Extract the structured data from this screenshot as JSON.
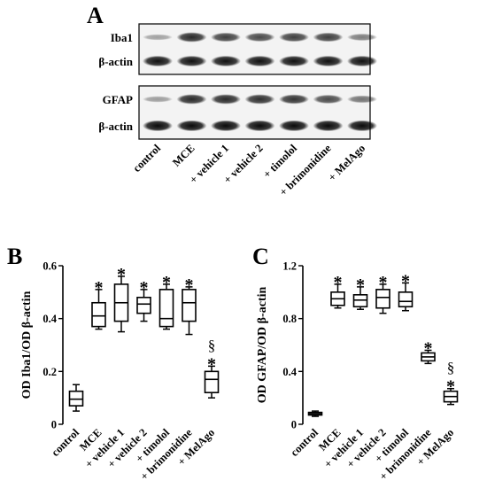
{
  "panels": {
    "a": "A",
    "b": "B",
    "c": "C"
  },
  "categories": [
    "control",
    "MCE",
    "+ vehicle 1",
    "+ vehicle 2",
    "+ timolol",
    "+ brimonidine",
    "+ MelAgo"
  ],
  "blot": {
    "groups": [
      {
        "rows": [
          {
            "label": "Iba1",
            "intensities": [
              0.22,
              0.8,
              0.7,
              0.65,
              0.7,
              0.7,
              0.4
            ]
          },
          {
            "label": "β-actin",
            "intensities": [
              0.92,
              0.92,
              0.92,
              0.92,
              0.92,
              0.92,
              0.92
            ]
          }
        ]
      },
      {
        "rows": [
          {
            "label": "GFAP",
            "intensities": [
              0.25,
              0.8,
              0.8,
              0.78,
              0.75,
              0.65,
              0.45
            ]
          },
          {
            "label": "β-actin",
            "intensities": [
              0.95,
              0.95,
              0.95,
              0.95,
              0.95,
              0.95,
              0.95
            ]
          }
        ]
      }
    ]
  },
  "chart_data": [
    {
      "type": "box",
      "panel": "B",
      "ylabel": "OD Iba1/OD β-actin",
      "ylim": [
        0,
        0.6
      ],
      "yticks": [
        0,
        0.2,
        0.4,
        0.6
      ],
      "ytick_labels": [
        "0",
        "0.2",
        "0.4",
        "0.6"
      ],
      "categories": [
        "control",
        "MCE",
        "+ vehicle 1",
        "+ vehicle 2",
        "+ timolol",
        "+ brimonidine",
        "+ MelAgo"
      ],
      "boxes": [
        {
          "min": 0.05,
          "q1": 0.07,
          "median": 0.095,
          "q3": 0.125,
          "max": 0.15
        },
        {
          "min": 0.36,
          "q1": 0.37,
          "median": 0.41,
          "q3": 0.46,
          "max": 0.51
        },
        {
          "min": 0.35,
          "q1": 0.39,
          "median": 0.46,
          "q3": 0.53,
          "max": 0.56
        },
        {
          "min": 0.39,
          "q1": 0.42,
          "median": 0.455,
          "q3": 0.48,
          "max": 0.51
        },
        {
          "min": 0.36,
          "q1": 0.37,
          "median": 0.4,
          "q3": 0.51,
          "max": 0.53
        },
        {
          "min": 0.34,
          "q1": 0.39,
          "median": 0.46,
          "q3": 0.51,
          "max": 0.52
        },
        {
          "min": 0.1,
          "q1": 0.12,
          "median": 0.17,
          "q3": 0.2,
          "max": 0.22
        }
      ],
      "annotations": [
        {
          "category": "MCE",
          "marks": [
            "*"
          ]
        },
        {
          "category": "+ vehicle 1",
          "marks": [
            "*"
          ]
        },
        {
          "category": "+ vehicle 2",
          "marks": [
            "*"
          ]
        },
        {
          "category": "+ timolol",
          "marks": [
            "*"
          ]
        },
        {
          "category": "+ brimonidine",
          "marks": [
            "*"
          ]
        },
        {
          "category": "+ MelAgo",
          "marks": [
            "§",
            "*"
          ]
        }
      ]
    },
    {
      "type": "box",
      "panel": "C",
      "ylabel": "OD GFAP/OD β-actin",
      "ylim": [
        0,
        1.2
      ],
      "yticks": [
        0,
        0.4,
        0.8,
        1.2
      ],
      "ytick_labels": [
        "0",
        "0.4",
        "0.8",
        "1.2"
      ],
      "categories": [
        "control",
        "MCE",
        "+ vehicle 1",
        "+ vehicle 2",
        "+ timolol",
        "+ brimonidine",
        "+ MelAgo"
      ],
      "boxes": [
        {
          "min": 0.06,
          "q1": 0.07,
          "median": 0.08,
          "q3": 0.09,
          "max": 0.1
        },
        {
          "min": 0.88,
          "q1": 0.9,
          "median": 0.95,
          "q3": 1.0,
          "max": 1.06
        },
        {
          "min": 0.87,
          "q1": 0.89,
          "median": 0.94,
          "q3": 0.98,
          "max": 1.04
        },
        {
          "min": 0.84,
          "q1": 0.88,
          "median": 0.96,
          "q3": 1.02,
          "max": 1.06
        },
        {
          "min": 0.86,
          "q1": 0.89,
          "median": 0.93,
          "q3": 1.0,
          "max": 1.07
        },
        {
          "min": 0.46,
          "q1": 0.48,
          "median": 0.51,
          "q3": 0.54,
          "max": 0.56
        },
        {
          "min": 0.15,
          "q1": 0.17,
          "median": 0.21,
          "q3": 0.25,
          "max": 0.27
        }
      ],
      "annotations": [
        {
          "category": "MCE",
          "marks": [
            "*"
          ]
        },
        {
          "category": "+ vehicle 1",
          "marks": [
            "*"
          ]
        },
        {
          "category": "+ vehicle 2",
          "marks": [
            "*"
          ]
        },
        {
          "category": "+ timolol",
          "marks": [
            "*"
          ]
        },
        {
          "category": "+ brimonidine",
          "marks": [
            "*"
          ]
        },
        {
          "category": "+ MelAgo",
          "marks": [
            "§",
            "*"
          ]
        }
      ]
    }
  ]
}
